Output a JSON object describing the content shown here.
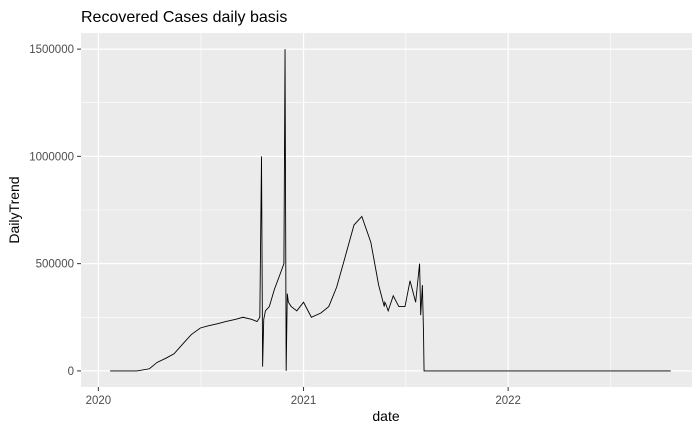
{
  "chart_data": {
    "type": "line",
    "title": "Recovered Cases daily basis",
    "xlabel": "date",
    "ylabel": "DailyTrend",
    "x_ticks": [
      "2020-01-01",
      "2021-01-01",
      "2022-01-01"
    ],
    "x_tick_labels": [
      "2020",
      "2021",
      "2022"
    ],
    "y_ticks": [
      0,
      500000,
      1000000,
      1500000
    ],
    "y_tick_labels": [
      "0",
      "500000",
      "1000000",
      "1500000"
    ],
    "xlim": [
      "2019-12-01",
      "2022-11-25"
    ],
    "ylim": [
      -75000,
      1575000
    ],
    "grid": true,
    "colors": {
      "panel_background": "#EBEBEB",
      "grid_major": "#FFFFFF",
      "line": "#000000",
      "tick_label": "#4D4D4D",
      "axis_title": "#000000"
    },
    "series": [
      {
        "x": [
          "2020-01-22",
          "2020-02-15",
          "2020-03-10",
          "2020-04-01",
          "2020-04-15",
          "2020-05-01",
          "2020-05-15",
          "2020-06-01",
          "2020-06-15",
          "2020-07-01",
          "2020-07-15",
          "2020-08-01",
          "2020-08-15",
          "2020-09-01",
          "2020-09-15",
          "2020-10-01",
          "2020-10-10",
          "2020-10-15",
          "2020-10-18",
          "2020-10-20",
          "2020-10-22",
          "2020-10-25",
          "2020-11-01",
          "2020-11-10",
          "2020-11-20",
          "2020-11-27",
          "2020-11-29",
          "2020-12-01",
          "2020-12-03",
          "2020-12-05",
          "2020-12-10",
          "2020-12-20",
          "2021-01-01",
          "2021-01-15",
          "2021-02-01",
          "2021-02-15",
          "2021-03-01",
          "2021-03-15",
          "2021-04-01",
          "2021-04-15",
          "2021-05-01",
          "2021-05-08",
          "2021-05-15",
          "2021-05-22",
          "2021-05-25",
          "2021-05-26",
          "2021-05-28",
          "2021-06-01",
          "2021-06-10",
          "2021-06-20",
          "2021-07-01",
          "2021-07-10",
          "2021-07-20",
          "2021-07-27",
          "2021-07-29",
          "2021-08-01",
          "2021-08-03",
          "2021-08-04",
          "2021-08-06",
          "2021-09-01",
          "2021-12-01",
          "2022-03-01",
          "2022-06-01",
          "2022-09-01",
          "2022-10-18"
        ],
        "y": [
          0,
          0,
          0,
          10000,
          40000,
          60000,
          80000,
          130000,
          170000,
          200000,
          210000,
          220000,
          230000,
          240000,
          250000,
          240000,
          230000,
          250000,
          1000000,
          20000,
          240000,
          280000,
          300000,
          380000,
          450000,
          500000,
          1500000,
          0,
          360000,
          320000,
          300000,
          280000,
          320000,
          250000,
          270000,
          300000,
          390000,
          520000,
          680000,
          720000,
          600000,
          500000,
          400000,
          330000,
          300000,
          320000,
          310000,
          280000,
          350000,
          300000,
          300000,
          420000,
          320000,
          500000,
          260000,
          400000,
          180000,
          0,
          0,
          0,
          0,
          0,
          0,
          0,
          0
        ]
      }
    ]
  }
}
